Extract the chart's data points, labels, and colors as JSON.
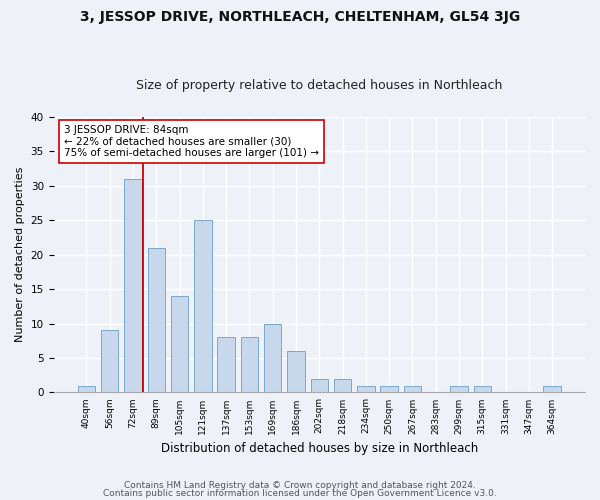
{
  "title1": "3, JESSOP DRIVE, NORTHLEACH, CHELTENHAM, GL54 3JG",
  "title2": "Size of property relative to detached houses in Northleach",
  "xlabel": "Distribution of detached houses by size in Northleach",
  "ylabel": "Number of detached properties",
  "bin_labels": [
    "40sqm",
    "56sqm",
    "72sqm",
    "89sqm",
    "105sqm",
    "121sqm",
    "137sqm",
    "153sqm",
    "169sqm",
    "186sqm",
    "202sqm",
    "218sqm",
    "234sqm",
    "250sqm",
    "267sqm",
    "283sqm",
    "299sqm",
    "315sqm",
    "331sqm",
    "347sqm",
    "364sqm"
  ],
  "bar_heights": [
    1,
    9,
    31,
    21,
    14,
    25,
    8,
    8,
    10,
    6,
    2,
    2,
    1,
    1,
    1,
    0,
    1,
    1,
    0,
    0,
    1
  ],
  "bar_color": "#c8d8ec",
  "bar_edge_color": "#7aa8cc",
  "property_line_color": "#cc0000",
  "annotation_text": "3 JESSOP DRIVE: 84sqm\n← 22% of detached houses are smaller (30)\n75% of semi-detached houses are larger (101) →",
  "annotation_box_color": "#ffffff",
  "annotation_box_edge": "#cc0000",
  "ylim": [
    0,
    40
  ],
  "yticks": [
    0,
    5,
    10,
    15,
    20,
    25,
    30,
    35,
    40
  ],
  "footer1": "Contains HM Land Registry data © Crown copyright and database right 2024.",
  "footer2": "Contains public sector information licensed under the Open Government Licence v3.0.",
  "bg_color": "#eef2f8",
  "plot_bg_color": "#eef2f8",
  "grid_color": "#ffffff",
  "title1_fontsize": 10,
  "title2_fontsize": 9,
  "annotation_fontsize": 7.5,
  "footer_fontsize": 6.5,
  "ylabel_fontsize": 8,
  "xlabel_fontsize": 8.5
}
